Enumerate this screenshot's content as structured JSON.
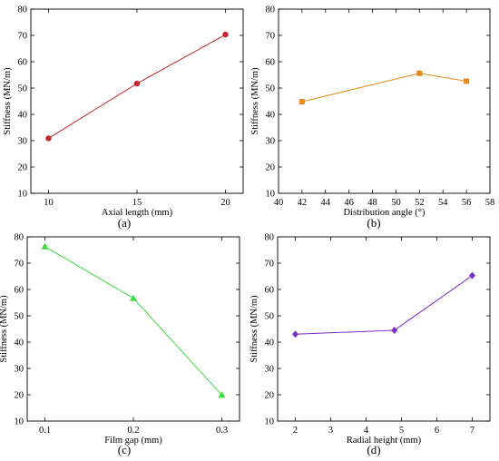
{
  "chart_data": [
    {
      "type": "line",
      "panel_label": "(a)",
      "xlabel": "Axial length (mm)",
      "ylabel": "Stiffness (MN/m)",
      "xlim": [
        9,
        21
      ],
      "ylim": [
        10,
        80
      ],
      "xticks": [
        10,
        15,
        20
      ],
      "yticks": [
        10,
        20,
        30,
        40,
        50,
        60,
        70,
        80
      ],
      "grid": false,
      "series": [
        {
          "x": [
            10,
            15,
            20
          ],
          "y": [
            30.9,
            51.7,
            70.3
          ],
          "color": "#c0262c",
          "marker": "circle"
        }
      ]
    },
    {
      "type": "line",
      "panel_label": "(b)",
      "xlabel": "Distribution angle (°)",
      "ylabel": "Stiffness (MN/m)",
      "xlim": [
        40,
        58
      ],
      "ylim": [
        10,
        80
      ],
      "xticks": [
        40,
        42,
        44,
        46,
        48,
        50,
        52,
        54,
        56,
        58
      ],
      "yticks": [
        10,
        20,
        30,
        40,
        50,
        60,
        70,
        80
      ],
      "grid": false,
      "series": [
        {
          "x": [
            42,
            52,
            56
          ],
          "y": [
            44.8,
            55.6,
            52.6
          ],
          "color": "#e8891e",
          "marker": "square"
        }
      ]
    },
    {
      "type": "line",
      "panel_label": "(c)",
      "xlabel": "Film gap (mm)",
      "ylabel": "Stiffness (MN/m)",
      "xlim": [
        0.08,
        0.32
      ],
      "ylim": [
        10,
        80
      ],
      "xticks": [
        0.1,
        0.2,
        0.3
      ],
      "yticks": [
        10,
        20,
        30,
        40,
        50,
        60,
        70,
        80
      ],
      "grid": false,
      "series": [
        {
          "x": [
            0.1,
            0.2,
            0.3
          ],
          "y": [
            76.3,
            56.7,
            19.9
          ],
          "color": "#3ddc3d",
          "marker": "triangle"
        }
      ]
    },
    {
      "type": "line",
      "panel_label": "(d)",
      "xlabel": "Radial height (mm)",
      "ylabel": "Stiffness (MN/m)",
      "xlim": [
        1.5,
        7.5
      ],
      "ylim": [
        10,
        80
      ],
      "xticks": [
        2,
        3,
        4,
        5,
        6,
        7
      ],
      "yticks": [
        10,
        20,
        30,
        40,
        50,
        60,
        70,
        80
      ],
      "grid": false,
      "series": [
        {
          "x": [
            2,
            4.8,
            7
          ],
          "y": [
            43.0,
            44.5,
            65.3
          ],
          "color": "#7b2fc8",
          "marker": "diamond"
        }
      ]
    }
  ]
}
